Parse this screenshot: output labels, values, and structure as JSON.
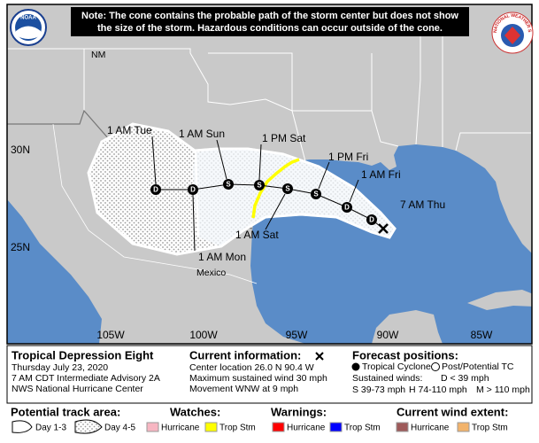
{
  "header": {
    "note_line1": "Note: The cone contains the probable path of the storm center but does not show",
    "note_line2": "the size of the storm. Hazardous conditions can occur outside of the cone.",
    "noaa": "NOAA",
    "nws": "NATIONAL WEATHER SERVICE"
  },
  "map": {
    "region_labels": [
      "NM",
      "Mexico"
    ],
    "lat_labels": [
      "30N",
      "25N"
    ],
    "lon_labels": [
      "105W",
      "100W",
      "95W",
      "90W",
      "85W"
    ],
    "forecast_points": [
      "D",
      "D",
      "S",
      "S",
      "S",
      "S",
      "D",
      "D"
    ],
    "forecast_labels": [
      "7 AM Thu",
      "1 AM Fri",
      "1 PM Fri",
      "1 AM Sat",
      "1 PM Sat",
      "1 AM Sun",
      "1 AM Mon",
      "1 AM Tue"
    ]
  },
  "info": {
    "storm": {
      "name": "Tropical Depression Eight",
      "date": "Thursday July 23, 2020",
      "advisory": "7 AM CDT Intermediate Advisory 2A",
      "center": "NWS National Hurricane Center"
    },
    "current": {
      "title": "Current information:",
      "location": "Center location 26.0 N 90.4 W",
      "wind": "Maximum sustained wind 30 mph",
      "movement": "Movement WNW at 9 mph"
    },
    "forecast": {
      "title": "Forecast positions:",
      "tc": "Tropical Cyclone",
      "ptc": "Post/Potential TC",
      "winds": "Sustained winds:",
      "d": "D < 39 mph",
      "s": "S 39-73 mph",
      "h": "H 74-110 mph",
      "m": "M > 110 mph"
    }
  },
  "legend": {
    "track": {
      "title": "Potential track area:",
      "day13": "Day 1-3",
      "day45": "Day 4-5"
    },
    "watches": {
      "title": "Watches:",
      "hurricane": "Hurricane",
      "ts": "Trop Stm"
    },
    "warnings": {
      "title": "Warnings:",
      "hurricane": "Hurricane",
      "ts": "Trop Stm"
    },
    "wind": {
      "title": "Current wind extent:",
      "hurricane": "Hurricane",
      "ts": "Trop Stm"
    }
  }
}
